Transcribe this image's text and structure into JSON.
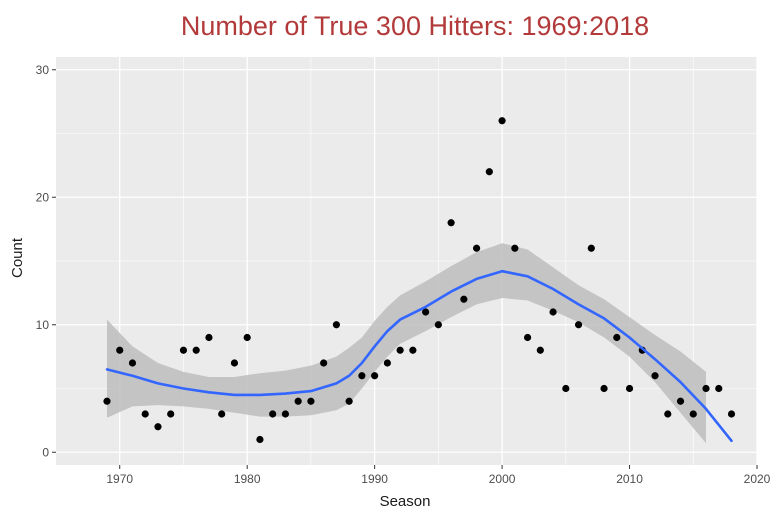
{
  "colors": {
    "title": "#b23a3a",
    "panel": "#ebebeb",
    "grid": "#ffffff",
    "points": "#000000",
    "smooth_line": "#3366ff",
    "confidence_band": "#bdbdbd"
  },
  "chart_data": {
    "type": "scatter",
    "title": "Number of True 300 Hitters:  1969:2018",
    "xlabel": "Season",
    "ylabel": "Count",
    "xlim": [
      1965,
      2020
    ],
    "ylim": [
      -1,
      31
    ],
    "x_ticks": [
      1970,
      1980,
      1990,
      2000,
      2010,
      2020
    ],
    "y_ticks": [
      0,
      10,
      20,
      30
    ],
    "grid": true,
    "legend": "none",
    "points": {
      "x": [
        1969,
        1970,
        1971,
        1972,
        1973,
        1974,
        1975,
        1976,
        1977,
        1978,
        1979,
        1980,
        1981,
        1982,
        1983,
        1984,
        1985,
        1986,
        1987,
        1988,
        1989,
        1990,
        1991,
        1992,
        1993,
        1994,
        1995,
        1996,
        1997,
        1998,
        1999,
        2000,
        2001,
        2002,
        2003,
        2004,
        2005,
        2006,
        2007,
        2008,
        2009,
        2010,
        2011,
        2012,
        2013,
        2014,
        2015,
        2016,
        2017,
        2018
      ],
      "y": [
        4,
        8,
        7,
        3,
        2,
        3,
        8,
        8,
        9,
        3,
        7,
        9,
        1,
        3,
        3,
        4,
        4,
        7,
        10,
        4,
        6,
        6,
        7,
        8,
        8,
        11,
        10,
        18,
        12,
        16,
        22,
        26,
        16,
        9,
        8,
        11,
        5,
        10,
        16,
        5,
        9,
        5,
        8,
        6,
        3,
        4,
        3,
        5,
        5,
        3
      ]
    },
    "smooth": {
      "x": [
        1969,
        1971,
        1973,
        1975,
        1977,
        1979,
        1981,
        1983,
        1985,
        1987,
        1988,
        1989,
        1990,
        1991,
        1992,
        1994,
        1996,
        1998,
        2000,
        2002,
        2004,
        2006,
        2008,
        2010,
        2012,
        2014,
        2016,
        2018
      ],
      "y": [
        6.5,
        6.0,
        5.4,
        5.0,
        4.7,
        4.5,
        4.5,
        4.6,
        4.8,
        5.4,
        6.0,
        7.0,
        8.3,
        9.5,
        10.4,
        11.4,
        12.6,
        13.6,
        14.2,
        13.8,
        12.8,
        11.6,
        10.5,
        9.0,
        7.3,
        5.5,
        3.4,
        0.9
      ],
      "upper": [
        10.4,
        8.3,
        7.0,
        6.3,
        5.9,
        5.9,
        6.2,
        6.4,
        6.8,
        7.5,
        8.2,
        9.0,
        10.3,
        11.4,
        12.3,
        13.4,
        14.6,
        15.7,
        16.4,
        15.9,
        14.5,
        13.1,
        12.0,
        10.6,
        9.2,
        7.9,
        6.3,
        null
      ],
      "lower": [
        2.7,
        3.6,
        3.7,
        3.6,
        3.4,
        3.1,
        2.8,
        2.8,
        2.9,
        3.3,
        3.8,
        5.0,
        6.3,
        7.5,
        8.5,
        9.5,
        10.6,
        11.6,
        12.1,
        11.9,
        11.1,
        10.2,
        9.0,
        7.5,
        5.5,
        3.1,
        0.7,
        null
      ]
    }
  }
}
